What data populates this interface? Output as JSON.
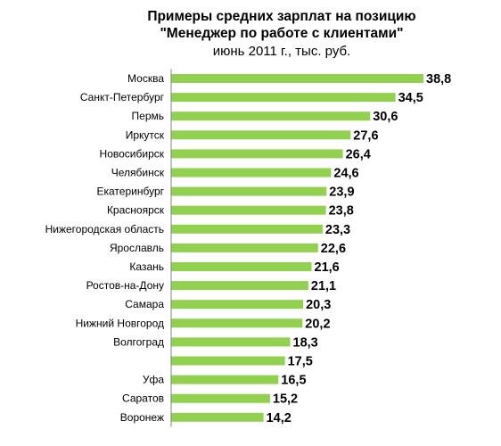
{
  "chart_data": {
    "type": "bar",
    "orientation": "horizontal",
    "title": "Примеры средних зарплат на позицию",
    "title_line2": "\"Менеджер  по работе с клиентами\"",
    "subtitle": "июнь 2011 г., тыс. руб.",
    "categories": [
      "Москва",
      "Санкт-Петербург",
      "Пермь",
      "Иркутск",
      "Новосибирск",
      "Челябинск",
      "Екатеринбург",
      "Красноярск",
      "Нижегородская область",
      "Ярославль",
      "Казань",
      "Ростов-на-Дону",
      "Самара",
      "Нижний Новгород",
      "Волгоград",
      "",
      "Уфа",
      "Саратов",
      "Воронеж"
    ],
    "values": [
      38.8,
      34.5,
      30.6,
      27.6,
      26.4,
      24.6,
      23.9,
      23.8,
      23.3,
      22.6,
      21.6,
      21.1,
      20.3,
      20.2,
      18.3,
      17.5,
      16.5,
      15.2,
      14.2
    ],
    "value_labels": [
      "38,8",
      "34,5",
      "30,6",
      "27,6",
      "26,4",
      "24,6",
      "23,9",
      "23,8",
      "23,3",
      "22,6",
      "21,6",
      "21,1",
      "20,3",
      "20,2",
      "18,3",
      "17,5",
      "16,5",
      "15,2",
      "14,2"
    ],
    "xlim": [
      0,
      38.8
    ],
    "bar_color": "#92d050",
    "axis_color": "#808080",
    "grid": false,
    "legend": "none"
  }
}
